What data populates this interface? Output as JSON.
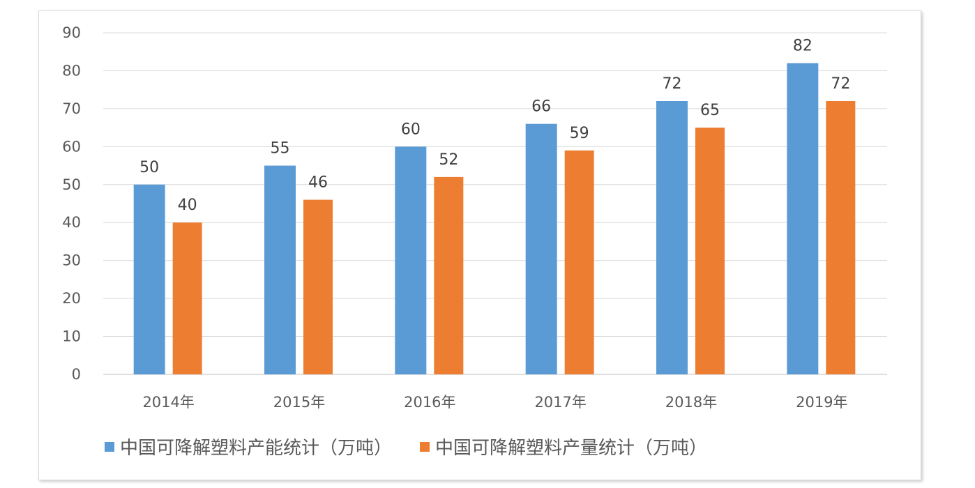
{
  "chart_data": {
    "type": "bar",
    "title": "",
    "xlabel": "",
    "ylabel": "",
    "categories": [
      "2014年",
      "2015年",
      "2016年",
      "2017年",
      "2018年",
      "2019年"
    ],
    "series": [
      {
        "name": "中国可降解塑料产能统计（万吨）",
        "values": [
          50,
          55,
          60,
          66,
          72,
          82
        ],
        "color": "#5b9bd5"
      },
      {
        "name": "中国可降解塑料产量统计（万吨）",
        "values": [
          40,
          46,
          52,
          59,
          65,
          72
        ],
        "color": "#ed7d31"
      }
    ],
    "ylim": [
      0,
      90
    ],
    "yticks": [
      0,
      10,
      20,
      30,
      40,
      50,
      60,
      70,
      80,
      90
    ],
    "grid": true,
    "legend": "bottom",
    "data_labels": true
  }
}
